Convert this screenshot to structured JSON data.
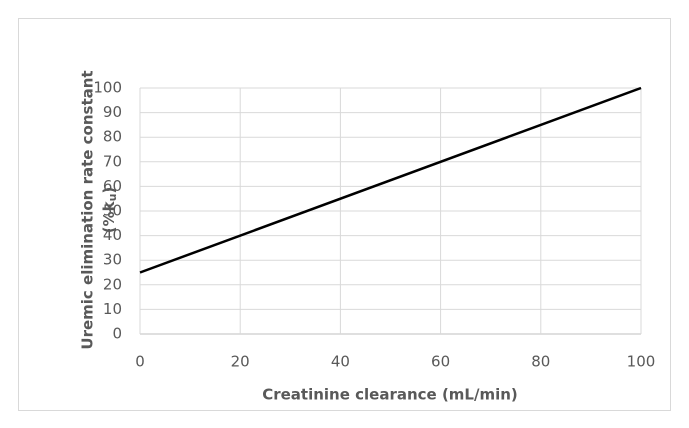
{
  "chart_data": {
    "type": "line",
    "xlabel": "Creatinine clearance (mL/min)",
    "ylabel": [
      "Uremic elimination rate constant",
      "(%k",
      "u",
      ")"
    ],
    "x": [
      0,
      100
    ],
    "series": [
      {
        "name": "Uremic elimination rate constant",
        "color": "#000000",
        "values": [
          25,
          100
        ]
      }
    ],
    "xlim": [
      0,
      100
    ],
    "xticks": [
      0,
      20,
      40,
      60,
      80,
      100
    ],
    "ylim": [
      0,
      100
    ],
    "yticks": [
      0,
      10,
      20,
      30,
      40,
      50,
      60,
      70,
      80,
      90,
      100
    ],
    "grid": true
  }
}
